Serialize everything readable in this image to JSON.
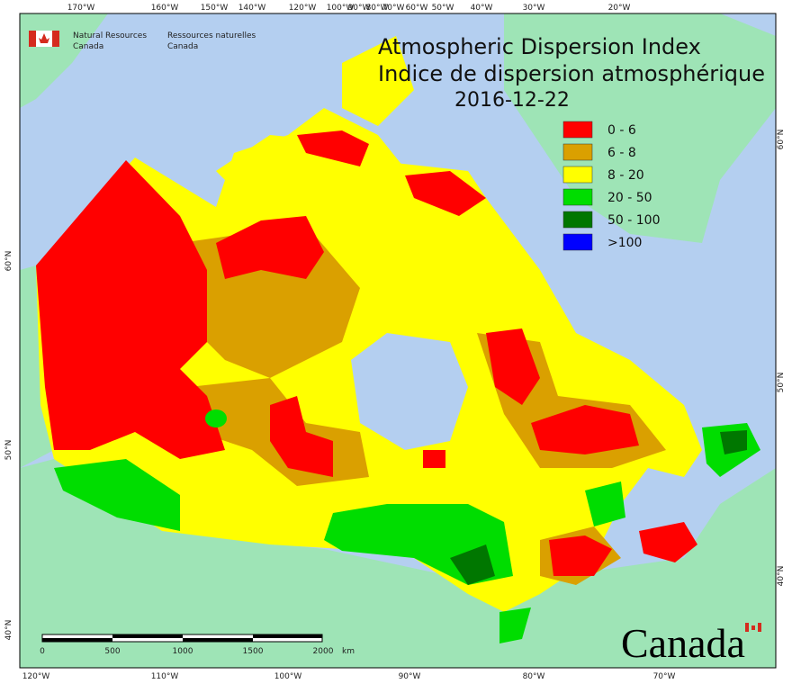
{
  "agency": {
    "en_line1": "Natural Resources",
    "en_line2": "Canada",
    "fr_line1": "Ressources naturelles",
    "fr_line2": "Canada"
  },
  "title": {
    "en": "Atmospheric Dispersion Index",
    "fr": "Indice de dispersion atmosphérique",
    "date": "2016-12-22"
  },
  "legend": [
    {
      "label": "0 - 6",
      "color": "#ff0000"
    },
    {
      "label": "6 - 8",
      "color": "#daa000"
    },
    {
      "label": "8 - 20",
      "color": "#ffff00"
    },
    {
      "label": "20 - 50",
      "color": "#00dd00"
    },
    {
      "label": "50 - 100",
      "color": "#007700"
    },
    {
      "label": ">100",
      "color": "#0000ff"
    }
  ],
  "top_labels": [
    "170°W",
    "160°W",
    "150°W",
    "140°W",
    "120°W",
    "100°W",
    "90°W",
    "80°W",
    "70°W",
    "60°W",
    "50°W",
    "40°W",
    "30°W",
    "20°W"
  ],
  "bottom_labels": [
    "120°W",
    "110°W",
    "100°W",
    "90°W",
    "80°W",
    "70°W"
  ],
  "left_labels": [
    "60°N",
    "50°N",
    "40°N"
  ],
  "right_labels": [
    "60°N",
    "50°N",
    "40°N"
  ],
  "scale_bar": {
    "ticks": [
      "0",
      "500",
      "1000",
      "1500",
      "2000"
    ],
    "unit": "km"
  },
  "wordmark": "Canada"
}
